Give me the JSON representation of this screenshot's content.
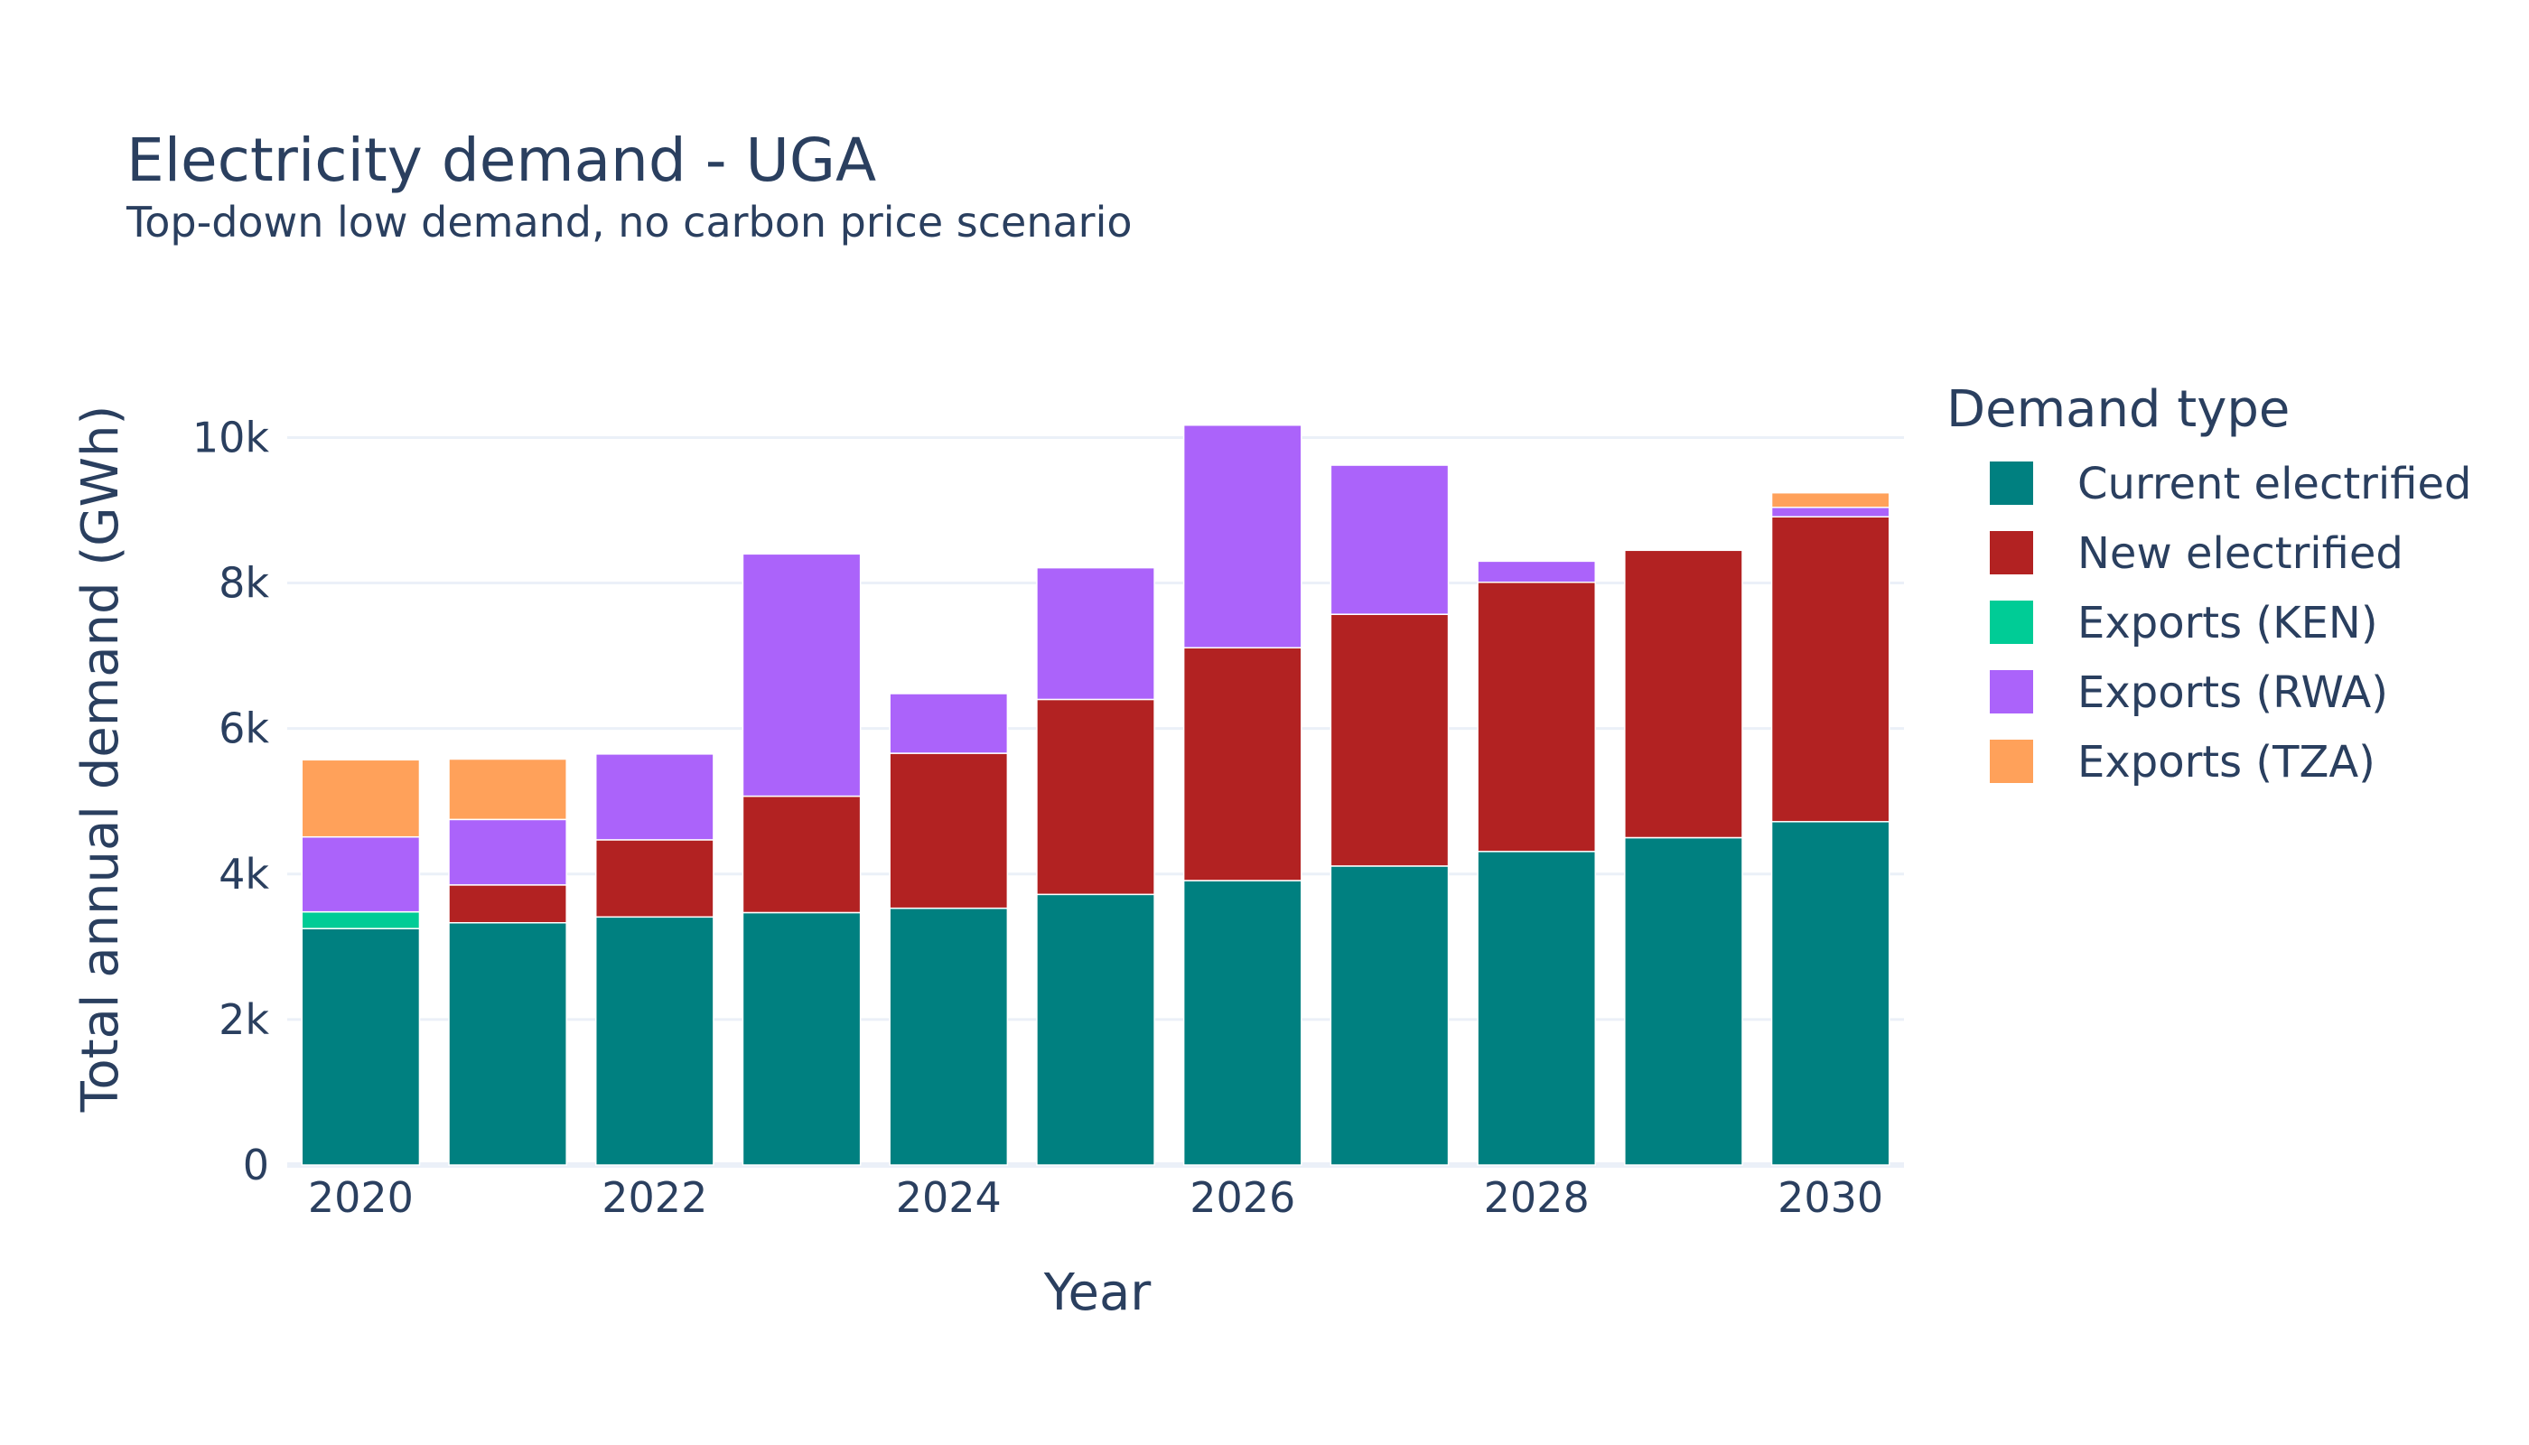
{
  "chart_data": {
    "type": "bar",
    "stacked": true,
    "title": "Electricity demand - UGA",
    "subtitle": "Top-down low demand, no carbon price scenario",
    "xlabel": "Year",
    "ylabel": "Total annual demand (GWh)",
    "x": [
      2020,
      2021,
      2022,
      2023,
      2024,
      2025,
      2026,
      2027,
      2028,
      2029,
      2030
    ],
    "x_ticks": [
      2020,
      2022,
      2024,
      2026,
      2028,
      2030
    ],
    "y_ticks": [
      0,
      2000,
      4000,
      6000,
      8000,
      10000
    ],
    "y_tick_labels": [
      "0",
      "2k",
      "4k",
      "6k",
      "8k",
      "10k"
    ],
    "ylim": [
      0,
      10800
    ],
    "grid": true,
    "legend_title": "Demand type",
    "legend_position": "right",
    "series": [
      {
        "name": "Current electrified",
        "color": "#008080",
        "values": [
          3250,
          3330,
          3410,
          3470,
          3530,
          3720,
          3910,
          4110,
          4310,
          4500,
          4720
        ]
      },
      {
        "name": "New electrified",
        "color": "#b22222",
        "values": [
          0,
          520,
          1060,
          1600,
          2130,
          2680,
          3200,
          3460,
          3700,
          3950,
          4190
        ]
      },
      {
        "name": "Exports (KEN)",
        "color": "#00cc96",
        "values": [
          230,
          0,
          0,
          0,
          0,
          0,
          0,
          0,
          0,
          0,
          0
        ]
      },
      {
        "name": "Exports (RWA)",
        "color": "#ab63fa",
        "values": [
          1030,
          900,
          1180,
          3330,
          820,
          1810,
          3060,
          2050,
          290,
          0,
          130
        ]
      },
      {
        "name": "Exports (TZA)",
        "color": "#ffa15a",
        "values": [
          1060,
          830,
          0,
          0,
          0,
          0,
          0,
          0,
          0,
          0,
          200
        ]
      }
    ]
  }
}
